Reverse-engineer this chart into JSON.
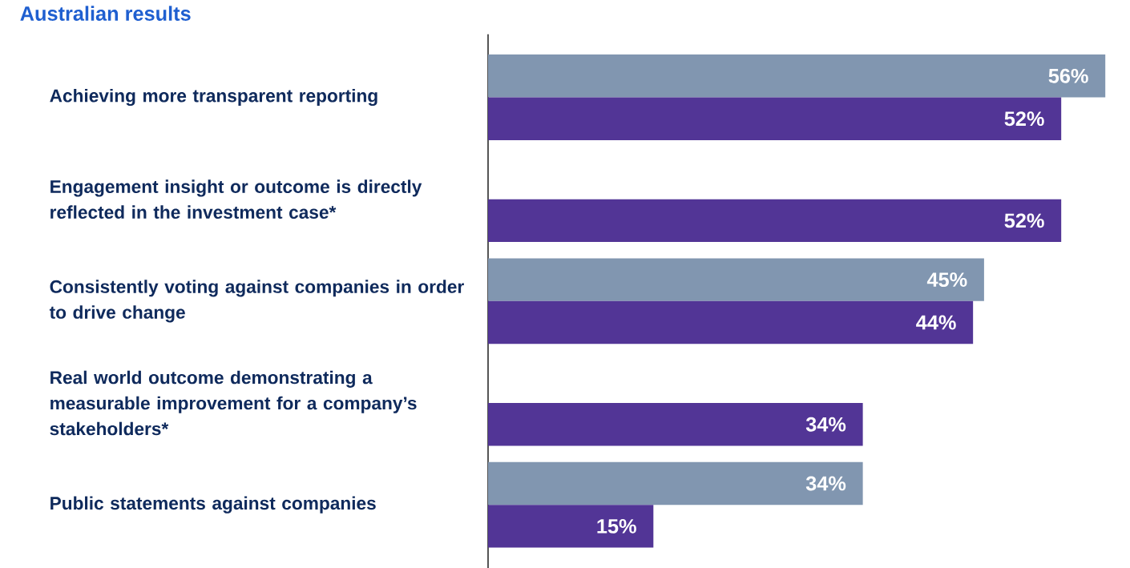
{
  "chart_data": {
    "type": "bar",
    "orientation": "horizontal",
    "title": "Australian results",
    "categories": [
      "Achieving more transparent reporting",
      "Engagement insight or outcome is directly reflected in the investment case*",
      "Consistently voting against companies in order to drive change",
      "Real world outcome demonstrating a measurable improvement for a company’s stakeholders*",
      "Public statements against companies"
    ],
    "series": [
      {
        "color": "#8196b0",
        "values": [
          56,
          null,
          45,
          null,
          34
        ],
        "value_labels": [
          "56%",
          null,
          "45%",
          null,
          "34%"
        ]
      },
      {
        "color": "#523596",
        "values": [
          52,
          52,
          44,
          34,
          15
        ],
        "value_labels": [
          "52%",
          "52%",
          "44%",
          "34%",
          "15%"
        ]
      }
    ]
  }
}
